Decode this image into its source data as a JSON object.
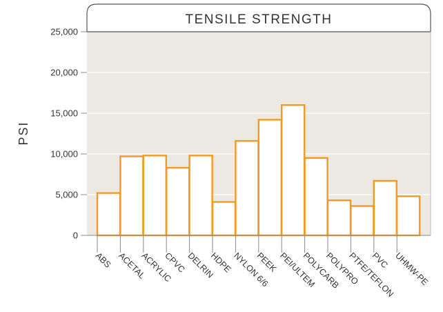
{
  "chart_data": {
    "type": "bar",
    "title": "TENSILE STRENGTH",
    "xlabel": "",
    "ylabel": "PSI",
    "ylim": [
      0,
      25000
    ],
    "yticks": [
      0,
      5000,
      10000,
      15000,
      20000,
      25000
    ],
    "ytick_labels": [
      "0",
      "5,000",
      "10,000",
      "15,000",
      "20,000",
      "25,000"
    ],
    "categories": [
      "ABS",
      "ACETAL",
      "ACRYLIC",
      "CPVC",
      "DELRIN",
      "HDPE",
      "NYLON 6/6",
      "PEEK",
      "PEI/ULTEM",
      "POLYCARB",
      "POLYPRO",
      "PTFE/TEFLON",
      "PVC",
      "UHMW-PE"
    ],
    "values": [
      5200,
      9700,
      9800,
      8300,
      9800,
      4100,
      11600,
      14200,
      16000,
      9500,
      4300,
      3600,
      6700,
      4800
    ],
    "grid": true,
    "legend": "none",
    "colors": {
      "bar_fill": "#ffffff",
      "bar_stroke": "#f39a21",
      "plot_bg": "#ece8e2",
      "grid": "#ffffff",
      "axis": "#888888",
      "text": "#333333"
    }
  }
}
